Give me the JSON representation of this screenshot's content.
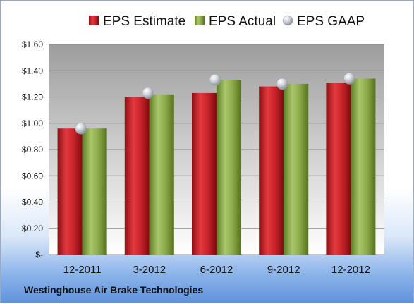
{
  "company": "Westinghouse Air Brake Technologies",
  "chart_data": {
    "type": "bar",
    "categories": [
      "12-2011",
      "3-2012",
      "6-2012",
      "9-2012",
      "12-2012"
    ],
    "series": [
      {
        "name": "EPS Estimate",
        "values": [
          0.96,
          1.2,
          1.23,
          1.28,
          1.31
        ],
        "color": "#c8232a"
      },
      {
        "name": "EPS Actual",
        "values": [
          0.96,
          1.22,
          1.33,
          1.3,
          1.34
        ],
        "color": "#8caa4a"
      },
      {
        "name": "EPS GAAP",
        "values": [
          0.96,
          1.23,
          1.33,
          1.3,
          1.34
        ],
        "color": "#b9bfc7",
        "marker": "sphere"
      }
    ],
    "ylim": [
      0,
      1.6
    ],
    "yticks": [
      "$-",
      "$0.20",
      "$0.40",
      "$0.60",
      "$0.80",
      "$1.00",
      "$1.20",
      "$1.40",
      "$1.60"
    ],
    "legend": "top",
    "grid": true
  }
}
